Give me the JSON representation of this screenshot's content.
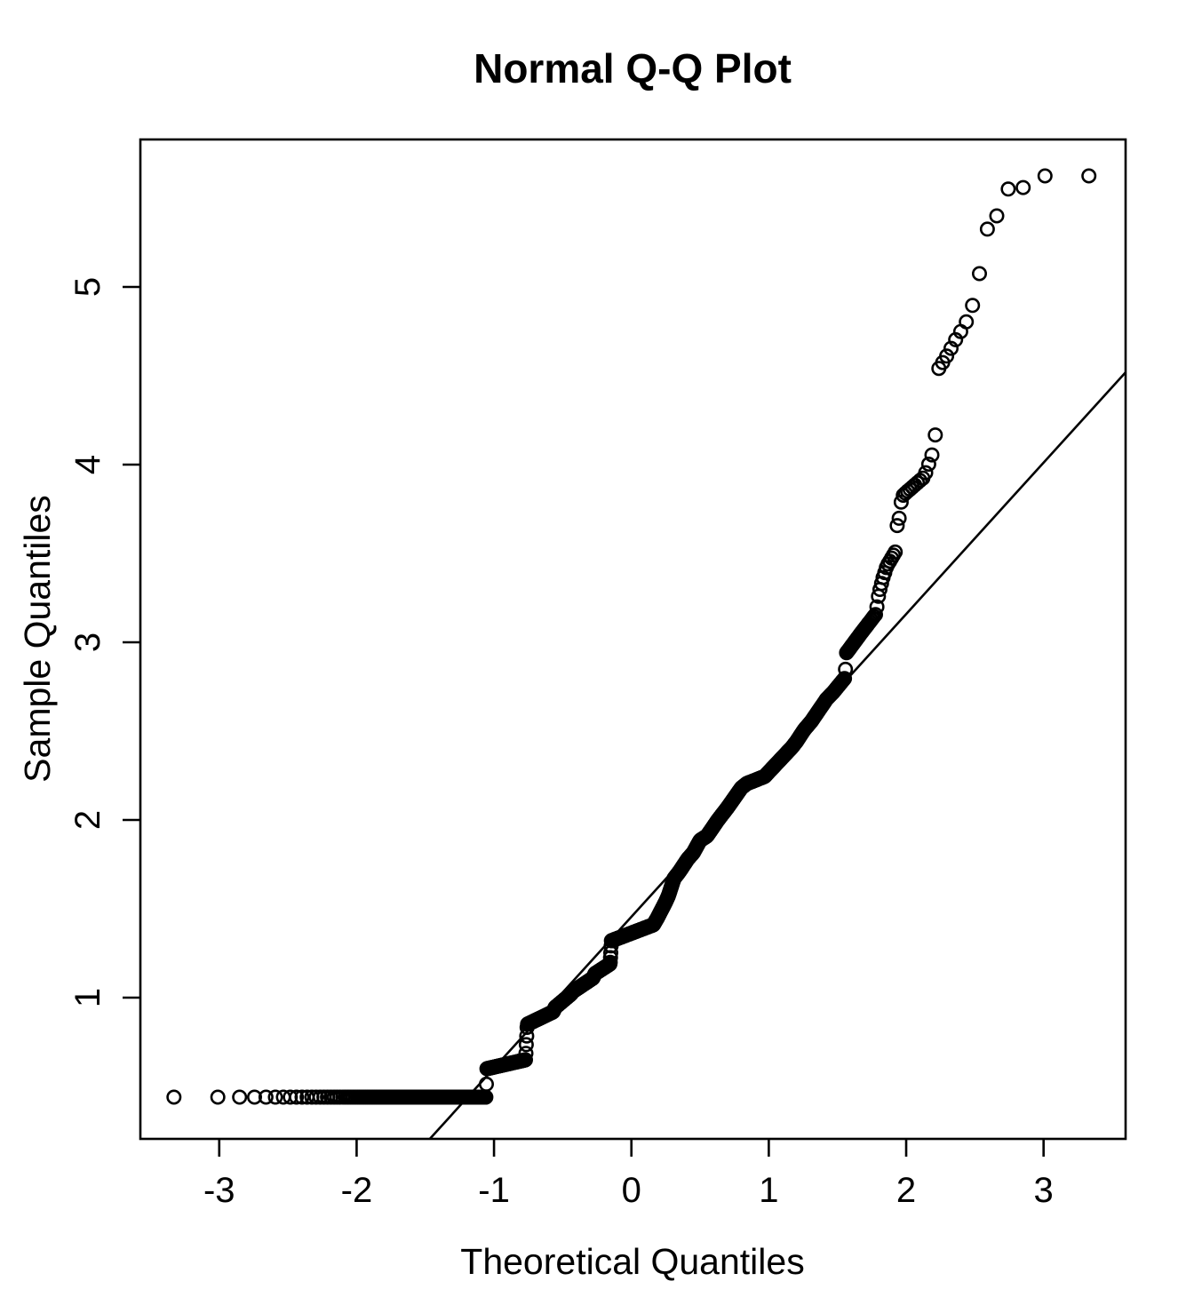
{
  "chart_data": {
    "type": "scatter",
    "plot_kind": "normal-qq-plot",
    "title": "Normal Q-Q Plot",
    "xlabel": "Theoretical Quantiles",
    "ylabel": "Sample Quantiles",
    "x_ticks": [
      -3,
      -2,
      -1,
      0,
      1,
      2,
      3
    ],
    "y_ticks": [
      1,
      2,
      3,
      4,
      5
    ],
    "x_range": [
      -3.574,
      3.597
    ],
    "y_range": [
      0.205,
      5.83
    ],
    "x_data_extent": [
      -3.33,
      3.33
    ],
    "y_data_extent": [
      0.44,
      5.63
    ],
    "n_points": 1150,
    "point_rule": "x[i] = qnorm((i-0.5)/n) for i=1..n; y[i] = piecewise-linear interpolation of sample_quantile_anchors at x[i]",
    "sample_quantile_anchors": [
      [
        -3.4,
        0.44
      ],
      [
        -1.058,
        0.44
      ],
      [
        -1.052,
        0.6
      ],
      [
        -0.77,
        0.65
      ],
      [
        -0.758,
        0.85
      ],
      [
        -0.57,
        0.92
      ],
      [
        -0.555,
        0.945
      ],
      [
        -0.44,
        1.02
      ],
      [
        -0.425,
        1.035
      ],
      [
        -0.28,
        1.11
      ],
      [
        -0.265,
        1.135
      ],
      [
        -0.155,
        1.19
      ],
      [
        -0.15,
        1.25
      ],
      [
        -0.146,
        1.32
      ],
      [
        0.16,
        1.41
      ],
      [
        0.19,
        1.45
      ],
      [
        0.25,
        1.54
      ],
      [
        0.27,
        1.575
      ],
      [
        0.31,
        1.67
      ],
      [
        0.35,
        1.71
      ],
      [
        0.41,
        1.78
      ],
      [
        0.45,
        1.815
      ],
      [
        0.5,
        1.885
      ],
      [
        0.55,
        1.91
      ],
      [
        0.63,
        2.0
      ],
      [
        0.7,
        2.07
      ],
      [
        0.8,
        2.18
      ],
      [
        0.84,
        2.205
      ],
      [
        0.97,
        2.245
      ],
      [
        1.0,
        2.27
      ],
      [
        1.17,
        2.41
      ],
      [
        1.2,
        2.44
      ],
      [
        1.26,
        2.51
      ],
      [
        1.31,
        2.555
      ],
      [
        1.42,
        2.68
      ],
      [
        1.47,
        2.72
      ],
      [
        1.555,
        2.8
      ],
      [
        1.565,
        2.94
      ],
      [
        1.68,
        3.06
      ],
      [
        1.78,
        3.16
      ],
      [
        1.8,
        3.27
      ],
      [
        1.83,
        3.36
      ],
      [
        1.86,
        3.43
      ],
      [
        1.93,
        3.52
      ],
      [
        1.935,
        3.67
      ],
      [
        1.95,
        3.7
      ],
      [
        1.96,
        3.78
      ],
      [
        1.98,
        3.83
      ],
      [
        2.13,
        3.93
      ],
      [
        2.15,
        3.97
      ],
      [
        2.19,
        4.06
      ],
      [
        2.195,
        4.15
      ],
      [
        2.215,
        4.17
      ],
      [
        2.22,
        4.52
      ],
      [
        2.27,
        4.58
      ],
      [
        2.31,
        4.63
      ],
      [
        2.35,
        4.69
      ],
      [
        2.39,
        4.74
      ],
      [
        2.43,
        4.79
      ],
      [
        2.475,
        4.87
      ],
      [
        2.53,
        5.06
      ],
      [
        2.585,
        5.32
      ],
      [
        2.65,
        5.38
      ],
      [
        2.73,
        5.55
      ],
      [
        2.86,
        5.56
      ],
      [
        3.0,
        5.625
      ],
      [
        3.4,
        5.625
      ]
    ],
    "reference_line": {
      "slope": 0.852,
      "intercept": 1.455
    },
    "marker": {
      "shape": "open-circle",
      "radius_px": 7.2,
      "stroke_px": 2.6
    },
    "grid": "off",
    "legend": "none",
    "colors": {
      "foreground": "#000000",
      "background": "#ffffff"
    }
  }
}
